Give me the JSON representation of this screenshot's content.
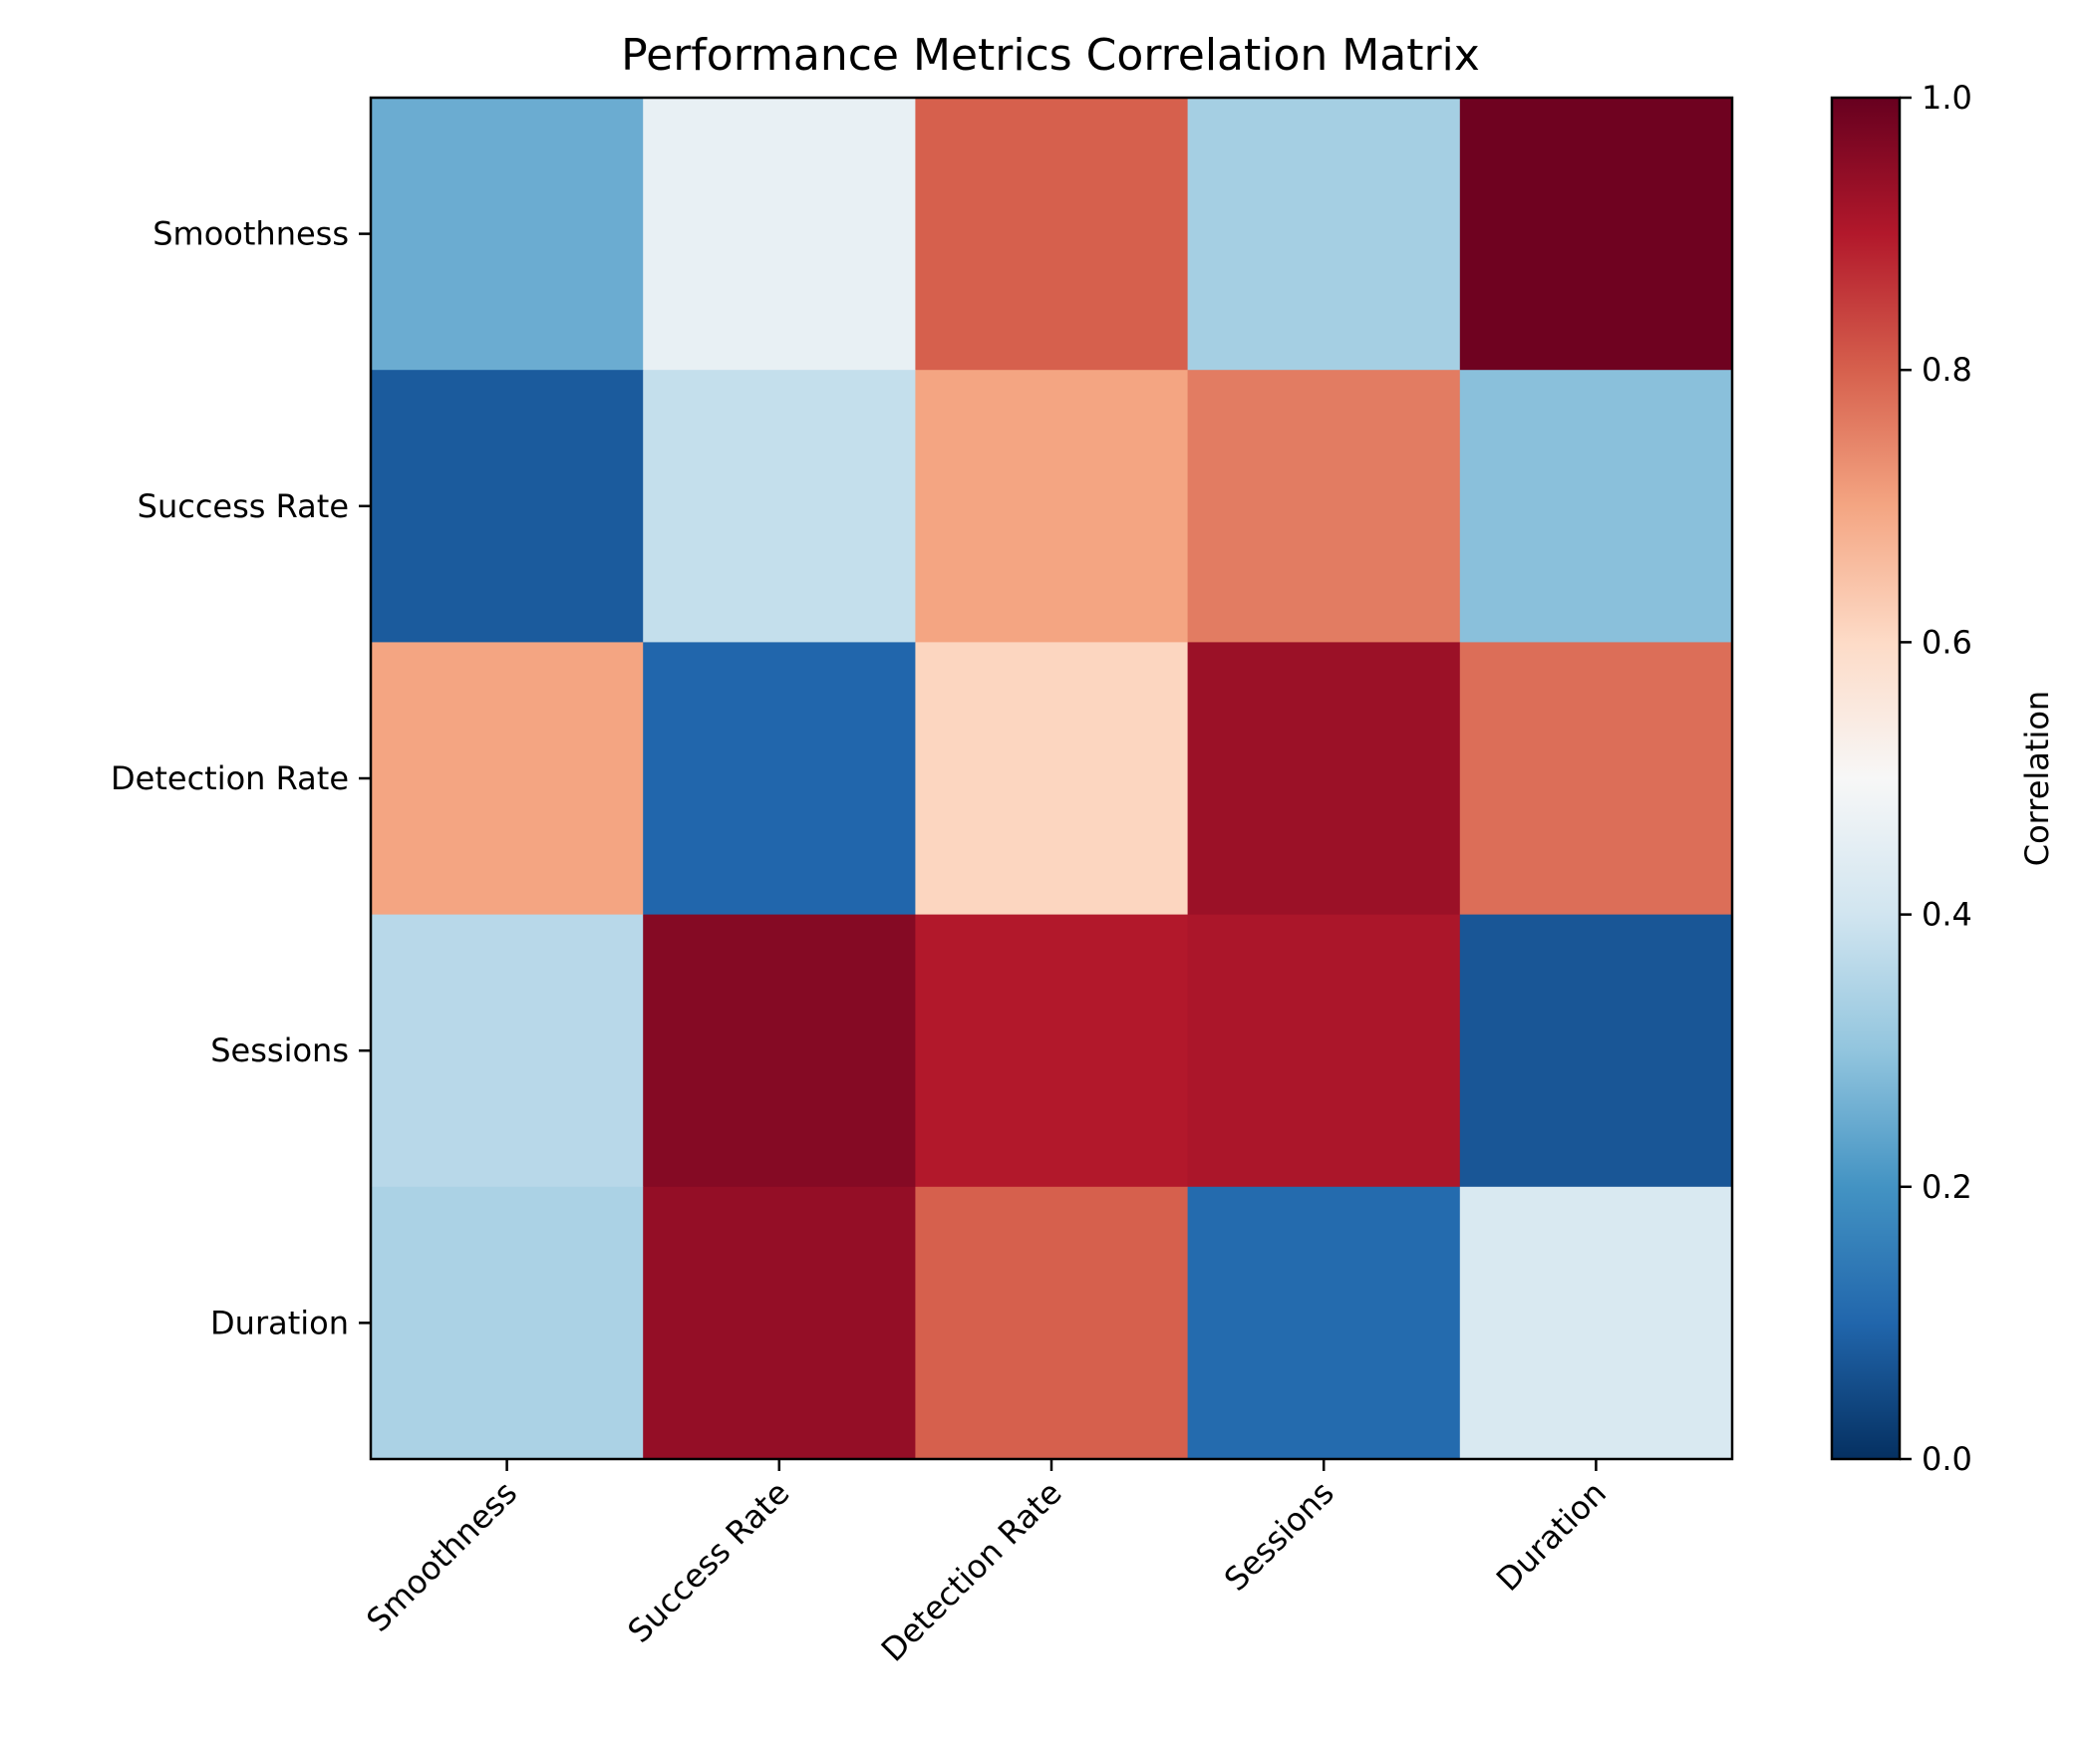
{
  "chart_data": {
    "type": "heatmap",
    "title": "Performance Metrics Correlation Matrix",
    "row_labels": [
      "Smoothness",
      "Success Rate",
      "Detection Rate",
      "Sessions",
      "Duration"
    ],
    "col_labels": [
      "Smoothness",
      "Success Rate",
      "Detection Rate",
      "Sessions",
      "Duration"
    ],
    "values": [
      [
        0.25,
        0.46,
        0.8,
        0.33,
        0.99
      ],
      [
        0.08,
        0.38,
        0.7,
        0.76,
        0.29
      ],
      [
        0.7,
        0.1,
        0.61,
        0.93,
        0.78
      ],
      [
        0.36,
        0.96,
        0.9,
        0.91,
        0.07
      ],
      [
        0.34,
        0.94,
        0.8,
        0.11,
        0.42
      ]
    ],
    "colorbar": {
      "label": "Correlation",
      "range": [
        0,
        1
      ],
      "ticks": [
        "0.0",
        "0.2",
        "0.4",
        "0.6",
        "0.8",
        "1.0"
      ],
      "colormap": "RdBu_r"
    },
    "grid": false
  }
}
